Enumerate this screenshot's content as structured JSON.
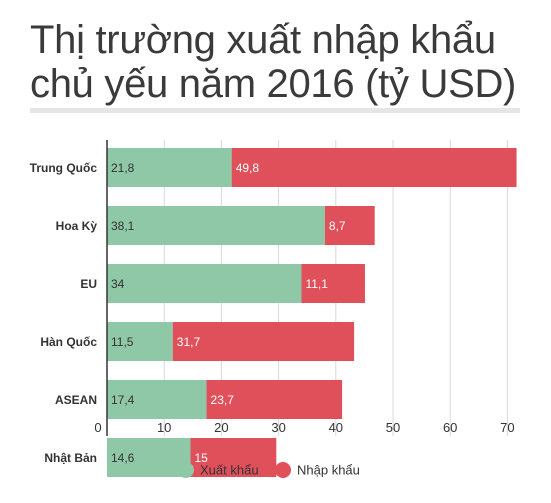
{
  "title": {
    "line1": "Thị trường xuất nhập khẩu",
    "line2": "chủ yếu năm 2016 (tỷ USD)"
  },
  "colors": {
    "export": "#8fc8a6",
    "import": "#e0505a",
    "grid": "#d9d9d9",
    "axis": "#333333",
    "text": "#333333"
  },
  "chart_data": {
    "type": "bar",
    "orientation": "horizontal",
    "stacked": true,
    "categories": [
      "Trung Quốc",
      "Hoa Kỳ",
      "EU",
      "Hàn Quốc",
      "ASEAN",
      "Nhật Bản"
    ],
    "series": [
      {
        "name": "Xuất khẩu",
        "values": [
          21.8,
          38.1,
          34,
          11.5,
          17.4,
          14.6
        ],
        "labels": [
          "21,8",
          "38,1",
          "34",
          "11,5",
          "17,4",
          "14,6"
        ],
        "color": "#8fc8a6"
      },
      {
        "name": "Nhập khẩu",
        "values": [
          49.8,
          8.7,
          11.1,
          31.7,
          23.7,
          15
        ],
        "labels": [
          "49,8",
          "8,7",
          "11,1",
          "31,7",
          "23,7",
          "15"
        ],
        "color": "#e0505a"
      }
    ],
    "xlim": [
      0,
      70
    ],
    "xticks": [
      "0",
      "10",
      "20",
      "30",
      "40",
      "50",
      "60",
      "70"
    ],
    "grid": true,
    "legend_position": "bottom"
  }
}
